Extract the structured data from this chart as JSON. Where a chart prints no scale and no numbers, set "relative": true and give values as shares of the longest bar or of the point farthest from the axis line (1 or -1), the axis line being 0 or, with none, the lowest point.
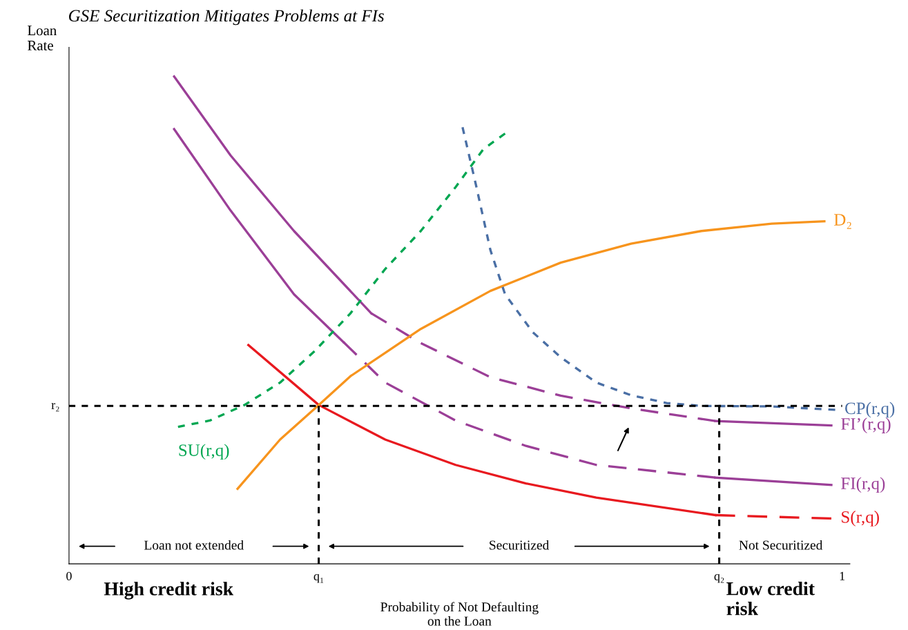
{
  "chart_data": {
    "type": "line",
    "title": "GSE Securitization Mitigates Problems at FIs",
    "xlabel": "Probability of Not Defaulting\non the Loan",
    "ylabel": "Loan\nRate",
    "relative": true,
    "xlim": [
      0,
      1.01
    ],
    "xticks": [
      0,
      {
        "value": 0.323,
        "label": "q₁"
      },
      {
        "value": 0.841,
        "label": "q₂"
      },
      1
    ],
    "series": [
      {
        "color": "#9b3f97",
        "line_style": "solid",
        "x": [
          0.136,
          0.209,
          0.291,
          0.391
        ],
        "values": [
          1.0,
          0.838,
          0.683,
          0.514
        ]
      },
      {
        "color": "#9b3f97",
        "line_style": "dashed",
        "x": [
          0.391,
          0.455,
          0.545,
          0.636,
          0.727,
          0.836
        ],
        "values": [
          0.514,
          0.453,
          0.383,
          0.345,
          0.319,
          0.293
        ]
      },
      {
        "name": "FI’(r,q)",
        "color": "#9b3f97",
        "line_style": "solid",
        "x": [
          0.836,
          0.986
        ],
        "values": [
          0.293,
          0.284
        ]
      },
      {
        "color": "#9b3f97",
        "line_style": "solid",
        "x": [
          0.136,
          0.209,
          0.291,
          0.355
        ],
        "values": [
          0.892,
          0.725,
          0.553,
          0.455
        ]
      },
      {
        "color": "#9b3f97",
        "line_style": "dashed",
        "x": [
          0.355,
          0.409,
          0.5,
          0.591,
          0.682,
          0.836
        ],
        "values": [
          0.455,
          0.372,
          0.294,
          0.242,
          0.203,
          0.177
        ]
      },
      {
        "name": "FI(r,q)",
        "color": "#9b3f97",
        "line_style": "solid",
        "x": [
          0.836,
          0.986
        ],
        "values": [
          0.177,
          0.162
        ]
      },
      {
        "color": "#e8191f",
        "line_style": "solid",
        "x": [
          0.232,
          0.323,
          0.409,
          0.5,
          0.591,
          0.682,
          0.836
        ],
        "values": [
          0.449,
          0.326,
          0.255,
          0.203,
          0.165,
          0.136,
          0.1
        ]
      },
      {
        "name": "S(r,q)",
        "color": "#e8191f",
        "line_style": "dashed",
        "x": [
          0.836,
          0.986
        ],
        "values": [
          0.1,
          0.093
        ]
      },
      {
        "name": "D₂",
        "color": "#f7941d",
        "line_style": "solid",
        "x": [
          0.218,
          0.273,
          0.323,
          0.364,
          0.455,
          0.545,
          0.636,
          0.727,
          0.818,
          0.909,
          0.977
        ],
        "values": [
          0.154,
          0.255,
          0.326,
          0.385,
          0.482,
          0.56,
          0.618,
          0.657,
          0.683,
          0.698,
          0.703
        ]
      },
      {
        "name": "SU(r,q)",
        "color": "#00a651",
        "line_style": "dotted",
        "x": [
          0.141,
          0.182,
          0.227,
          0.273,
          0.318,
          0.364,
          0.409,
          0.455,
          0.5,
          0.536,
          0.564
        ],
        "values": [
          0.281,
          0.294,
          0.326,
          0.372,
          0.437,
          0.514,
          0.605,
          0.683,
          0.773,
          0.851,
          0.883
        ]
      },
      {
        "name": "CP(r,q)",
        "color": "#4a6fa5",
        "line_style": "dotted",
        "x": [
          0.509,
          0.527,
          0.545,
          0.564,
          0.6,
          0.636,
          0.682,
          0.727,
          0.773,
          0.818,
          0.909,
          0.991
        ],
        "values": [
          0.896,
          0.773,
          0.644,
          0.553,
          0.475,
          0.424,
          0.372,
          0.346,
          0.33,
          0.324,
          0.323,
          0.316
        ]
      }
    ],
    "ref_lines": [
      {
        "axis": "y",
        "value": 0.324,
        "label": "r₂",
        "color": "#000000",
        "line_style": "dotted"
      },
      {
        "axis": "x",
        "value": 0.323,
        "color": "#000000",
        "line_style": "dotted"
      },
      {
        "axis": "x",
        "value": 0.841,
        "color": "#000000",
        "line_style": "dotted"
      }
    ],
    "annotations": [
      "Loan not extended",
      "Securitized",
      "Not Securitized",
      "High credit risk",
      "Low credit\nrisk"
    ]
  }
}
